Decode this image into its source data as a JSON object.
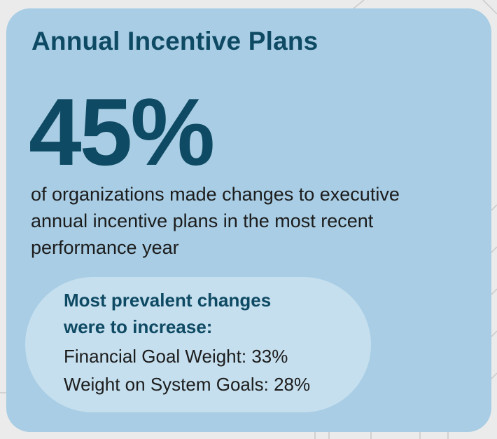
{
  "card": {
    "title": "Annual Incentive Plans",
    "stat_value": "45%",
    "description": "of organizations made changes to executive annual incentive plans in the most recent performance year"
  },
  "changes": {
    "heading_line1": "Most prevalent changes",
    "heading_line2": "were to increase:",
    "items": [
      "Financial Goal Weight: 33%",
      "Weight on System Goals: 28%"
    ]
  },
  "colors": {
    "card_background": "#a8cde4",
    "inner_box_background": "#c5dfee",
    "accent_text": "#0e4a63",
    "body_text": "#1c1c1c",
    "page_background": "#ebebeb"
  }
}
